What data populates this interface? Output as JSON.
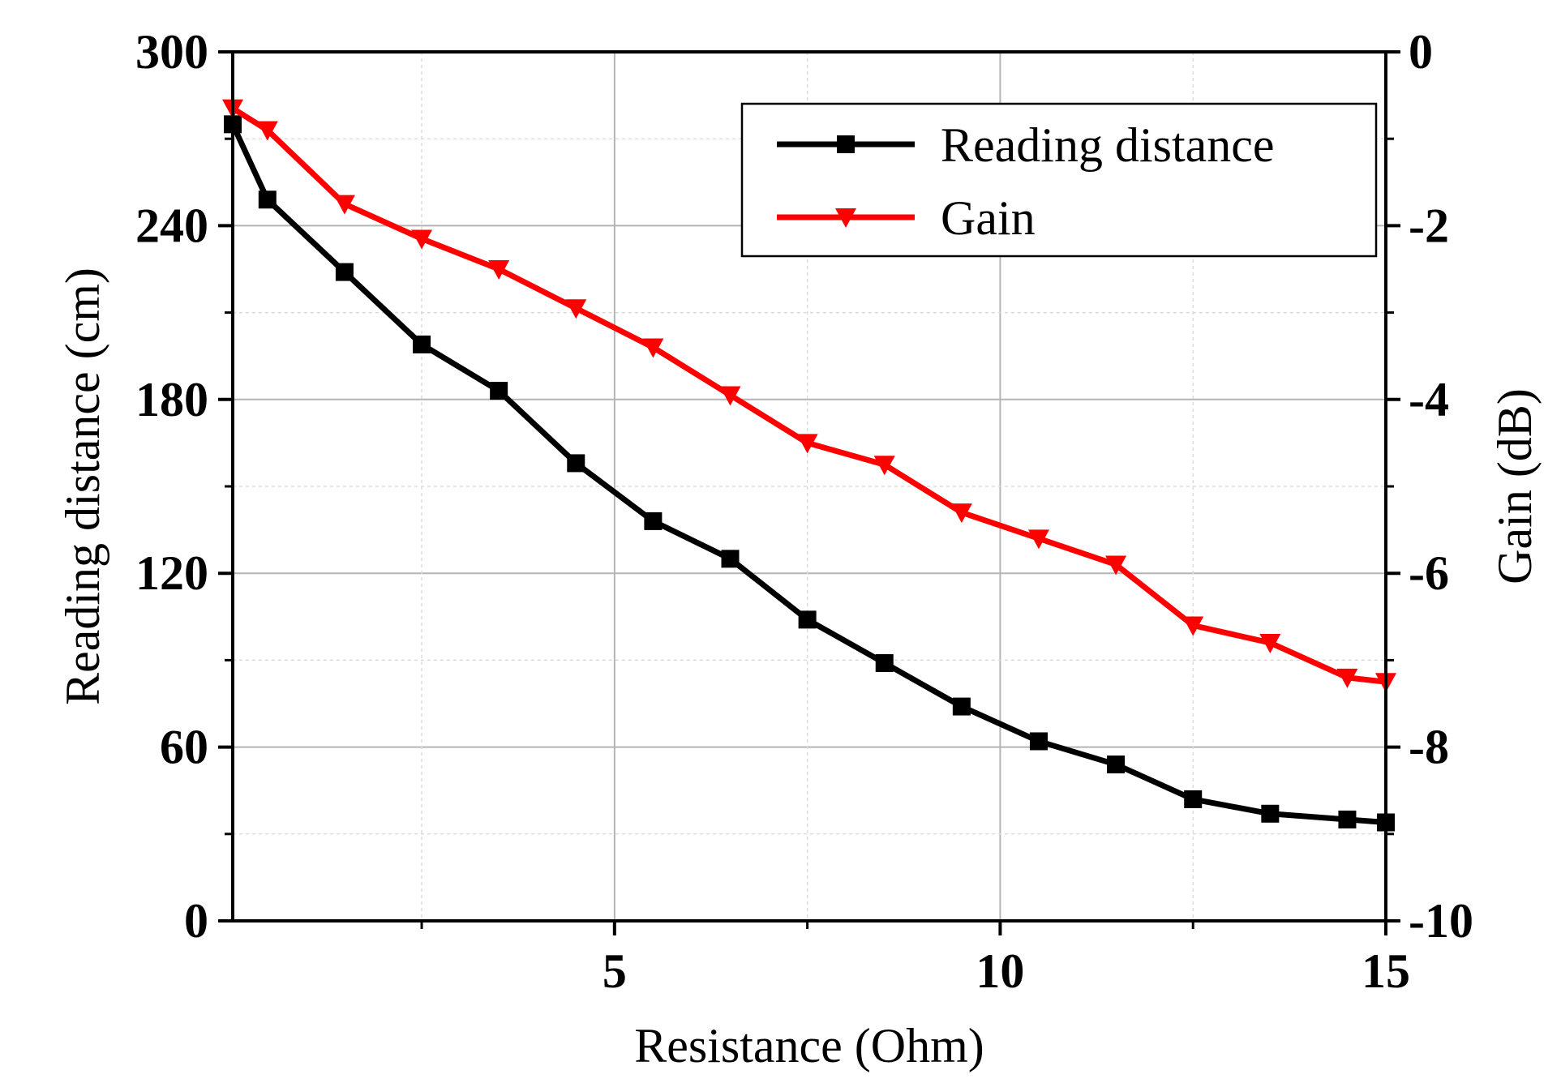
{
  "chart_data": {
    "type": "line",
    "xlabel": "Resistance (Ohm)",
    "ylabel_left": "Reading distance (cm)",
    "ylabel_right": "Gain (dB)",
    "xlim": [
      0.05,
      15
    ],
    "ylim_left": [
      0,
      300
    ],
    "ylim_right": [
      -10,
      0
    ],
    "x_ticks": [
      5,
      10,
      15
    ],
    "x_tick_labels": [
      "5",
      "10",
      "15"
    ],
    "x_minor_ticks": [
      2.5,
      7.5,
      12.5
    ],
    "y_left_ticks": [
      0,
      60,
      120,
      180,
      240,
      300
    ],
    "y_left_tick_labels": [
      "0",
      "60",
      "120",
      "180",
      "240",
      "300"
    ],
    "y_right_ticks": [
      0,
      -2,
      -4,
      -6,
      -8,
      -10
    ],
    "y_right_tick_labels": [
      "0",
      "-2",
      "-4",
      "-6",
      "-8",
      "-10"
    ],
    "grid": true,
    "legend_position": "top-right",
    "series": [
      {
        "name": "Reading distance",
        "axis": "left",
        "color": "#000000",
        "marker": "square",
        "x": [
          0.05,
          0.5,
          1.5,
          2.5,
          3.5,
          4.5,
          5.5,
          6.5,
          7.5,
          8.5,
          9.5,
          10.5,
          11.5,
          12.5,
          13.5,
          14.5,
          15
        ],
        "values": [
          275,
          249,
          224,
          199,
          183,
          158,
          138,
          125,
          104,
          89,
          74,
          62,
          54,
          42,
          37,
          35,
          34
        ]
      },
      {
        "name": "Gain",
        "axis": "right",
        "color": "#ff0000",
        "marker": "triangle-down",
        "x": [
          0.05,
          0.5,
          1.5,
          2.5,
          3.5,
          4.5,
          5.5,
          6.5,
          7.5,
          8.5,
          9.5,
          10.5,
          11.5,
          12.5,
          13.5,
          14.5,
          15
        ],
        "values": [
          -0.65,
          -0.9,
          -1.75,
          -2.15,
          -2.5,
          -2.95,
          -3.4,
          -3.95,
          -4.5,
          -4.75,
          -5.3,
          -5.6,
          -5.9,
          -6.6,
          -6.8,
          -7.2,
          -7.25
        ]
      }
    ]
  }
}
